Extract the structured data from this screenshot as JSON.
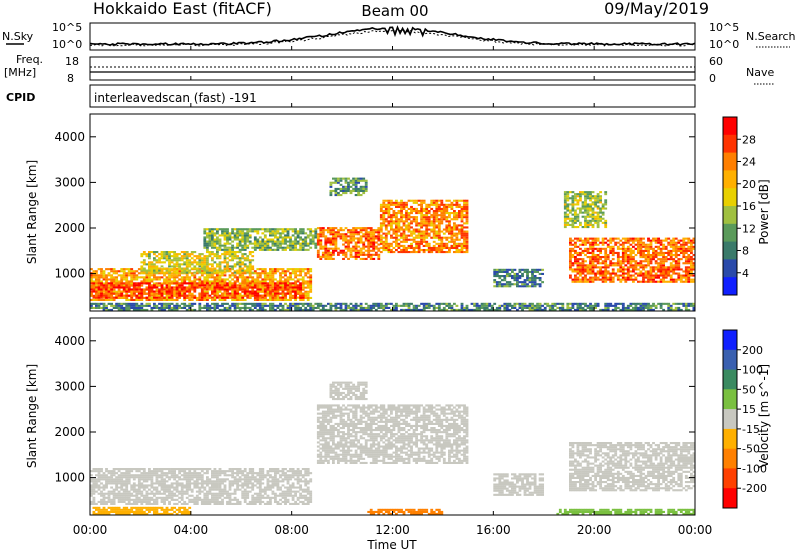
{
  "header": {
    "title_left": "Hokkaido East (fitACF)",
    "title_center": "Beam 00",
    "title_right": "09/May/2019"
  },
  "noise_panel": {
    "left_label": "N.Sky",
    "right_label": "N.Search",
    "tick_top": "10^5",
    "tick_bottom": "10^0",
    "right_tick_top": "10^5",
    "right_tick_bottom": "10^0"
  },
  "freq_panel": {
    "left_label_line1": "Freq.",
    "left_label_line2": "[MHz]",
    "right_label": "Nave",
    "left_ticks": [
      "18",
      "8"
    ],
    "right_ticks": [
      "60",
      "0"
    ]
  },
  "cpid_panel": {
    "label": "CPID",
    "text": "interleavedscan (fast) -191"
  },
  "power_colorbar": {
    "label": "Power [dB]",
    "ticks": [
      "28",
      "24",
      "20",
      "16",
      "12",
      "8",
      "4"
    ],
    "colors": [
      "#ff0000",
      "#ff3300",
      "#ff7f00",
      "#ffb000",
      "#e8d000",
      "#a0c040",
      "#5a9a5a",
      "#3a7a6a",
      "#2a4aaa",
      "#1020ff"
    ]
  },
  "velocity_colorbar": {
    "label": "Velocity [m s^-1]",
    "ticks": [
      "200",
      "100",
      "50",
      "15",
      "-15",
      "-50",
      "-100",
      "-200"
    ],
    "colors": [
      "#1020ff",
      "#3a60b0",
      "#3a8a60",
      "#7ac040",
      "#c8c8c0",
      "#ffb000",
      "#ff8000",
      "#ff4000",
      "#ff0000"
    ]
  },
  "chart_data": [
    {
      "type": "heatmap",
      "panel": "power",
      "ylabel": "Slant Range [km]",
      "yticks": [
        "4000",
        "3000",
        "2000",
        "1000"
      ],
      "ylim": [
        180,
        4500
      ],
      "xlim": [
        0,
        24
      ],
      "regions": [
        {
          "t0": 0.0,
          "t1": 8.8,
          "r0": 400,
          "r1": 1100,
          "value": 22
        },
        {
          "t0": 0.0,
          "t1": 8.5,
          "r0": 450,
          "r1": 800,
          "value": 27
        },
        {
          "t0": 2.0,
          "t1": 6.5,
          "r0": 1000,
          "r1": 1500,
          "value": 18
        },
        {
          "t0": 4.5,
          "t1": 9.0,
          "r0": 1500,
          "r1": 2000,
          "value": 14
        },
        {
          "t0": 9.0,
          "t1": 11.5,
          "r0": 1300,
          "r1": 2000,
          "value": 25
        },
        {
          "t0": 11.5,
          "t1": 15.0,
          "r0": 1450,
          "r1": 2600,
          "value": 24
        },
        {
          "t0": 9.5,
          "t1": 11.0,
          "r0": 2700,
          "r1": 3100,
          "value": 12
        },
        {
          "t0": 16.0,
          "t1": 18.0,
          "r0": 700,
          "r1": 1100,
          "value": 10
        },
        {
          "t0": 18.8,
          "t1": 20.5,
          "r0": 2000,
          "r1": 2800,
          "value": 16
        },
        {
          "t0": 19.0,
          "t1": 24.0,
          "r0": 800,
          "r1": 1800,
          "value": 25
        },
        {
          "t0": 0.0,
          "t1": 24.0,
          "r0": 180,
          "r1": 350,
          "value": 10
        }
      ]
    },
    {
      "type": "heatmap",
      "panel": "velocity",
      "ylabel": "Slant Range [km]",
      "xlabel": "Time UT",
      "xticks": [
        "00:00",
        "04:00",
        "08:00",
        "12:00",
        "16:00",
        "20:00",
        "00:00"
      ],
      "yticks": [
        "4000",
        "3000",
        "2000",
        "1000"
      ],
      "ylim": [
        180,
        4500
      ],
      "xlim": [
        0,
        24
      ],
      "regions": [
        {
          "t0": 0.0,
          "t1": 8.8,
          "r0": 400,
          "r1": 1200,
          "value": 0
        },
        {
          "t0": 9.0,
          "t1": 15.0,
          "r0": 1300,
          "r1": 2600,
          "value": 0
        },
        {
          "t0": 9.5,
          "t1": 11.0,
          "r0": 2700,
          "r1": 3100,
          "value": 0
        },
        {
          "t0": 16.0,
          "t1": 18.0,
          "r0": 600,
          "r1": 1100,
          "value": 0
        },
        {
          "t0": 19.0,
          "t1": 24.0,
          "r0": 700,
          "r1": 1800,
          "value": 0
        },
        {
          "t0": 11.0,
          "t1": 14.0,
          "r0": 180,
          "r1": 300,
          "value": -60
        },
        {
          "t0": 0.0,
          "t1": 4.0,
          "r0": 180,
          "r1": 350,
          "value": -30
        },
        {
          "t0": 18.5,
          "t1": 24.0,
          "r0": 180,
          "r1": 300,
          "value": 30
        }
      ]
    }
  ]
}
